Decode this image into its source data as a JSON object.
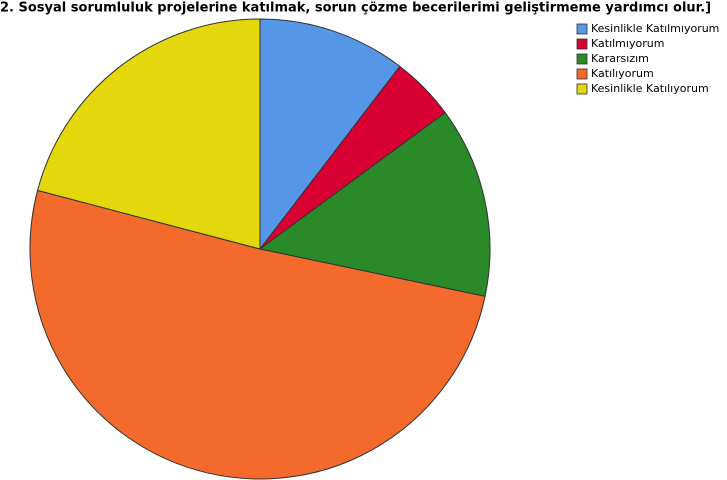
{
  "chart_data": {
    "type": "pie",
    "title": "2. Sosyal sorumluluk projelerine katılmak, sorun çözme becerilerimi geliştirmeme yardımcı olur.]",
    "categories": [
      "Kesinlikle Katılmıyorum",
      "Katılmıyorum",
      "Kararsızım",
      "Katılıyorum",
      "Kesinlikle Katılıyorum"
    ],
    "values": [
      10.4,
      4.5,
      13.4,
      50.8,
      20.9
    ],
    "colors": [
      "#5596e6",
      "#d80032",
      "#2a8a2a",
      "#f46a2c",
      "#e2d80c"
    ],
    "legend": "top-right"
  }
}
